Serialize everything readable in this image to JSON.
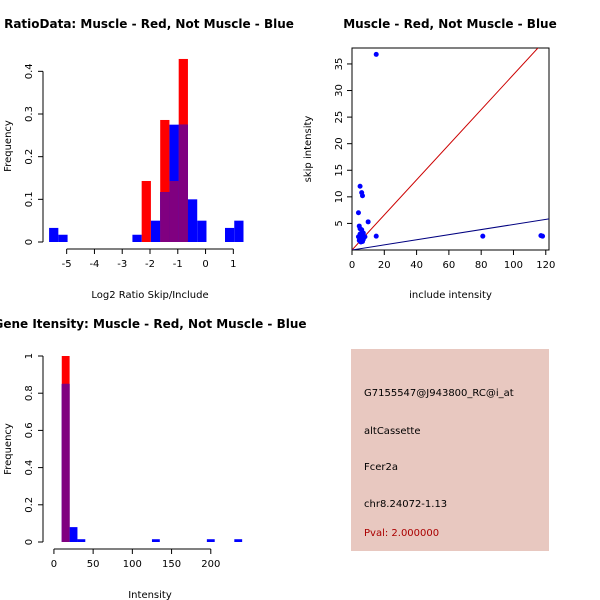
{
  "colors": {
    "muscle": "#ff0000",
    "not_muscle": "#0000ff",
    "overlap": "#800080",
    "panel_bg": "#e8c8c0",
    "pval": "#aa0000",
    "diag_line": "#cc0000",
    "fit_line": "#000080"
  },
  "chart_data": [
    {
      "id": "ratio-histogram",
      "type": "bar",
      "title": "RatioData: Muscle - Red, Not Muscle - Blue",
      "xlabel": "Log2 Ratio Skip/Include",
      "ylabel": "Frequency",
      "xlim": [
        -5.6,
        1.6
      ],
      "ylim": [
        0,
        0.45
      ],
      "xticks": [
        -5,
        -4,
        -3,
        -2,
        -1,
        0,
        1
      ],
      "yticks": [
        0.0,
        0.1,
        0.2,
        0.3,
        0.4
      ],
      "bin_width": 0.333,
      "series": [
        {
          "name": "Muscle",
          "color": "red",
          "bins": [
            [
              -2.3,
              0.143
            ],
            [
              -1.633,
              0.286
            ],
            [
              -1.3,
              0.143
            ],
            [
              -0.967,
              0.429
            ]
          ]
        },
        {
          "name": "Not Muscle",
          "color": "blue",
          "bins": [
            [
              -5.633,
              0.033
            ],
            [
              -5.3,
              0.017
            ],
            [
              -2.633,
              0.017
            ],
            [
              -1.967,
              0.05
            ],
            [
              -1.633,
              0.117
            ],
            [
              -1.3,
              0.275
            ],
            [
              -0.967,
              0.275
            ],
            [
              -0.633,
              0.1
            ],
            [
              -0.3,
              0.05
            ],
            [
              0.7,
              0.033
            ],
            [
              1.033,
              0.05
            ]
          ]
        }
      ]
    },
    {
      "id": "intensity-scatter",
      "type": "scatter",
      "title": "Muscle - Red, Not Muscle - Blue",
      "xlabel": "include intensity",
      "ylabel": "skip intensity",
      "xlim": [
        0,
        122
      ],
      "ylim": [
        0,
        38
      ],
      "xticks": [
        0,
        20,
        40,
        60,
        80,
        100,
        120
      ],
      "yticks": [
        5,
        10,
        15,
        20,
        25,
        30,
        35
      ],
      "points": [
        [
          15,
          36.8
        ],
        [
          5,
          12
        ],
        [
          6,
          10.8
        ],
        [
          6.5,
          10.2
        ],
        [
          4,
          7
        ],
        [
          4.5,
          4.5
        ],
        [
          5,
          4
        ],
        [
          6,
          3.8
        ],
        [
          7,
          3.2
        ],
        [
          5,
          3
        ],
        [
          6,
          2.8
        ],
        [
          8,
          2.5
        ],
        [
          4,
          2.5
        ],
        [
          5,
          2
        ],
        [
          6,
          2.2
        ],
        [
          7,
          2
        ],
        [
          10,
          5.3
        ],
        [
          15,
          2.6
        ],
        [
          81,
          2.6
        ],
        [
          117,
          2.7
        ],
        [
          118,
          2.6
        ],
        [
          5.5,
          1.5
        ],
        [
          4.5,
          1.8
        ],
        [
          6.5,
          1.6
        ]
      ],
      "lines": [
        {
          "name": "diagonal",
          "color": "red",
          "slope": 0.33,
          "intercept": 0
        },
        {
          "name": "fit",
          "color": "navy",
          "slope": 0.048,
          "intercept": 0
        }
      ]
    },
    {
      "id": "intensity-histogram",
      "type": "bar",
      "title": "Gene Itensity: Muscle - Red, Not Muscle - Blue",
      "xlabel": "Intensity",
      "ylabel": "Frequency",
      "xlim": [
        -5,
        250
      ],
      "ylim": [
        0,
        1.0
      ],
      "xticks": [
        0,
        50,
        100,
        150,
        200
      ],
      "yticks": [
        0.0,
        0.2,
        0.4,
        0.6,
        0.8,
        1.0
      ],
      "bin_width": 10,
      "series": [
        {
          "name": "Muscle",
          "color": "red",
          "bins": [
            [
              10,
              1.0
            ]
          ]
        },
        {
          "name": "Not Muscle",
          "color": "blue",
          "bins": [
            [
              10,
              0.85
            ],
            [
              20,
              0.08
            ],
            [
              30,
              0.015
            ],
            [
              125,
              0.015
            ],
            [
              195,
              0.015
            ],
            [
              230,
              0.015
            ]
          ]
        }
      ]
    }
  ],
  "info_panel": {
    "probe_id": "G7155547@J943800_RC@i_at",
    "event_type": "altCassette",
    "gene": "Fcer2a",
    "location": "chr8.24072-1.13",
    "pval": "Pval: 2.000000"
  }
}
